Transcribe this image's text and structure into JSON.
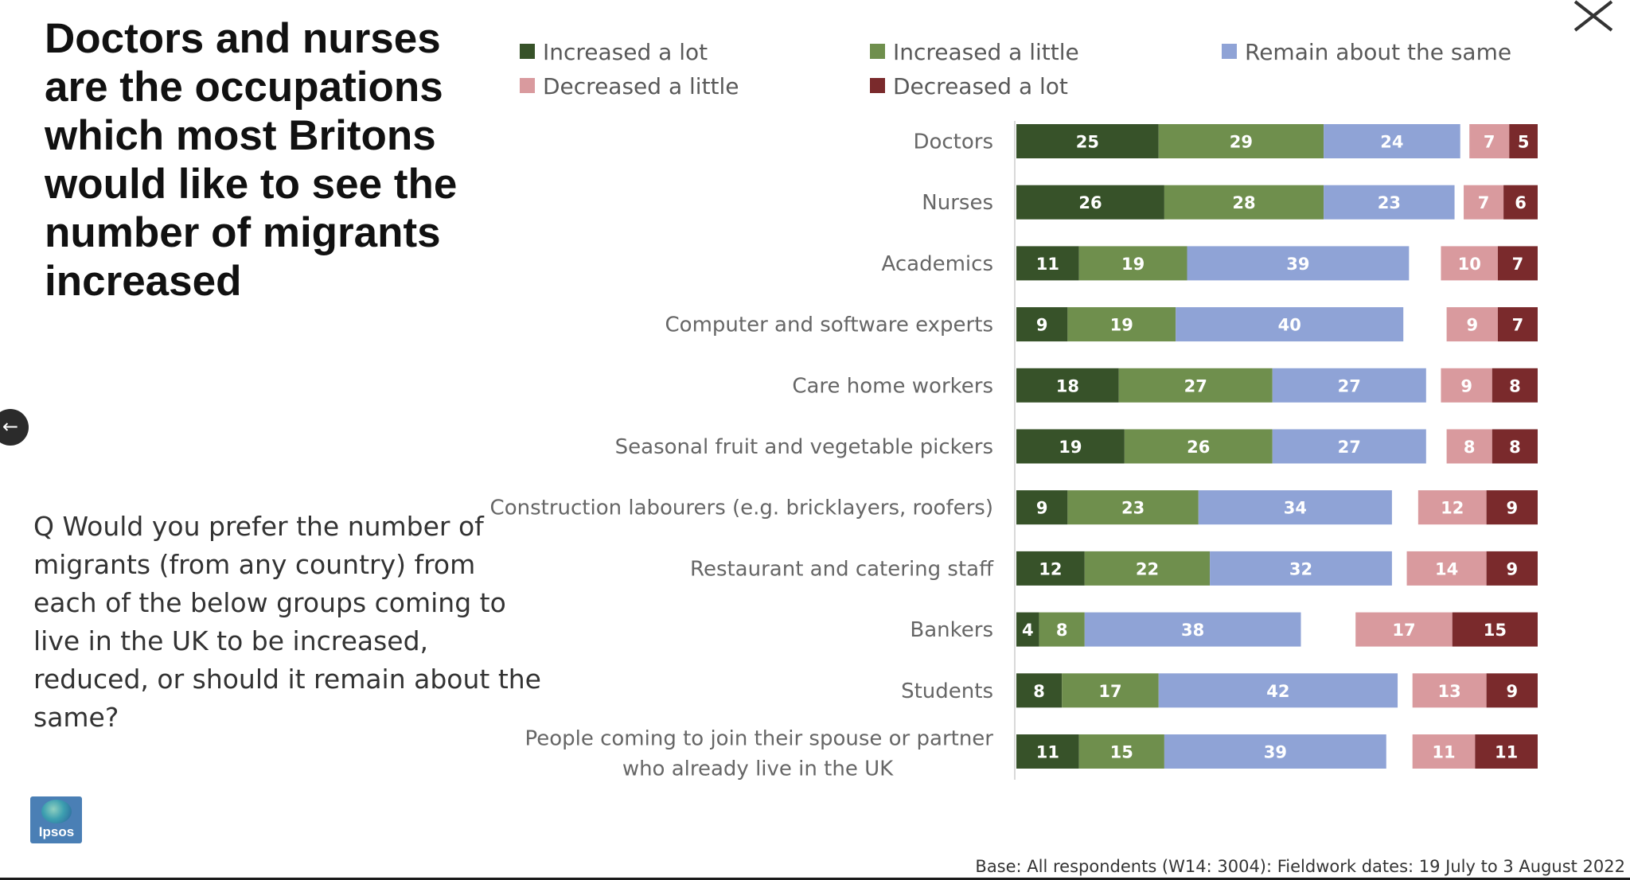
{
  "slide": {
    "title": "Doctors and nurses are the occupations which most Britons would like to see the number of migrants increased",
    "question": "Q Would you prefer the number of migrants (from any country) from each of the below groups coming to live in the UK to be increased, reduced, or should it remain about the same?",
    "footer": "Base: All respondents (W14: 3004): Fieldwork dates: 19 July to 3 August 2022",
    "logo_text": "Ipsos"
  },
  "controls": {
    "close_icon": "close-icon",
    "back_icon": "arrow-left-icon",
    "back_glyph": "←"
  },
  "colors": {
    "increased_a_lot": "#375229",
    "increased_a_little": "#6f8f4d",
    "remain_same": "#8fa3d6",
    "decreased_a_little": "#d99a9e",
    "decreased_a_lot": "#7a2a2c"
  },
  "chart_data": {
    "type": "bar",
    "orientation": "horizontal",
    "stacked": true,
    "legend_position": "top",
    "categories": [
      "Doctors",
      "Nurses",
      "Academics",
      "Computer and software experts",
      "Care home workers",
      "Seasonal fruit and vegetable pickers",
      "Construction labourers (e.g. bricklayers, roofers)",
      "Restaurant and catering staff",
      "Bankers",
      "Students",
      "People coming to join their spouse or partner who already live in the UK"
    ],
    "series": [
      {
        "name": "Increased a lot",
        "values": [
          25,
          26,
          11,
          9,
          18,
          19,
          9,
          12,
          4,
          8,
          11
        ]
      },
      {
        "name": "Increased a little",
        "values": [
          29,
          28,
          19,
          19,
          27,
          26,
          23,
          22,
          8,
          17,
          15
        ]
      },
      {
        "name": "Remain about the same",
        "values": [
          24,
          23,
          39,
          40,
          27,
          27,
          34,
          32,
          38,
          42,
          39
        ]
      },
      {
        "name": "Decreased a little",
        "values": [
          7,
          7,
          10,
          9,
          9,
          8,
          12,
          14,
          17,
          13,
          11
        ]
      },
      {
        "name": "Decreased a lot",
        "values": [
          5,
          6,
          7,
          7,
          8,
          8,
          9,
          9,
          15,
          9,
          11
        ]
      }
    ]
  }
}
